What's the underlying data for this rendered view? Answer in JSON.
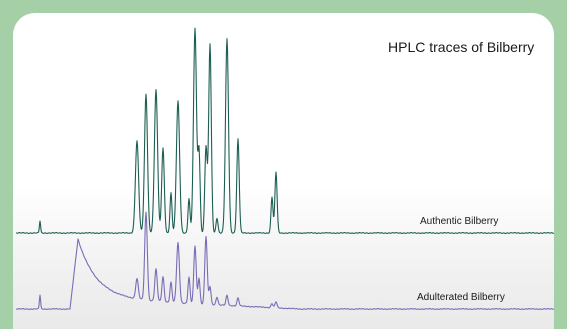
{
  "chart_data": {
    "type": "line",
    "title": "HPLC traces of Bilberry",
    "xlabel": "",
    "ylabel": "",
    "grid": false,
    "legend": "none",
    "series": [
      {
        "name": "Authentic Bilberry",
        "color": "#1c5e52",
        "baseline": 0,
        "peaks": [
          {
            "x": 40,
            "h": 12,
            "w": 0.6
          },
          {
            "x": 137,
            "h": 92,
            "w": 1.6
          },
          {
            "x": 146,
            "h": 139,
            "w": 1.5
          },
          {
            "x": 156,
            "h": 143,
            "w": 1.6
          },
          {
            "x": 163,
            "h": 85,
            "w": 1.3
          },
          {
            "x": 171,
            "h": 40,
            "w": 1.0
          },
          {
            "x": 178,
            "h": 132,
            "w": 1.6
          },
          {
            "x": 189,
            "h": 34,
            "w": 1.0
          },
          {
            "x": 195,
            "h": 205,
            "w": 1.5
          },
          {
            "x": 199,
            "h": 82,
            "w": 1.1
          },
          {
            "x": 206,
            "h": 86,
            "w": 1.2
          },
          {
            "x": 210,
            "h": 189,
            "w": 1.3
          },
          {
            "x": 217,
            "h": 15,
            "w": 1.0
          },
          {
            "x": 227,
            "h": 194,
            "w": 1.5
          },
          {
            "x": 238,
            "h": 94,
            "w": 1.2
          },
          {
            "x": 272,
            "h": 36,
            "w": 1.0
          },
          {
            "x": 276,
            "h": 61,
            "w": 1.1
          }
        ]
      },
      {
        "name": "Adulterated Bilberry",
        "color": "#7b6bb6",
        "baseline": 0,
        "hump": {
          "start": 70,
          "peak_x": 78,
          "peak_h": 70,
          "decay": 18,
          "tail_h": 11
        },
        "peaks": [
          {
            "x": 40,
            "h": 14,
            "w": 0.6
          },
          {
            "x": 137,
            "h": 20,
            "w": 1.3
          },
          {
            "x": 146,
            "h": 88,
            "w": 1.3
          },
          {
            "x": 156,
            "h": 32,
            "w": 1.2
          },
          {
            "x": 163,
            "h": 25,
            "w": 1.1
          },
          {
            "x": 171,
            "h": 20,
            "w": 1.0
          },
          {
            "x": 178,
            "h": 60,
            "w": 1.4
          },
          {
            "x": 189,
            "h": 26,
            "w": 1.0
          },
          {
            "x": 195,
            "h": 58,
            "w": 1.2
          },
          {
            "x": 199,
            "h": 26,
            "w": 1.0
          },
          {
            "x": 206,
            "h": 68,
            "w": 1.2
          },
          {
            "x": 210,
            "h": 18,
            "w": 1.0
          },
          {
            "x": 217,
            "h": 8,
            "w": 1.0
          },
          {
            "x": 227,
            "h": 10,
            "w": 1.0
          },
          {
            "x": 238,
            "h": 8,
            "w": 1.0
          },
          {
            "x": 272,
            "h": 4,
            "w": 1.0
          },
          {
            "x": 276,
            "h": 6,
            "w": 1.0
          }
        ]
      }
    ]
  },
  "labels": {
    "authentic": "Authentic Bilberry",
    "adulterated": "Adulterated Bilberry"
  }
}
